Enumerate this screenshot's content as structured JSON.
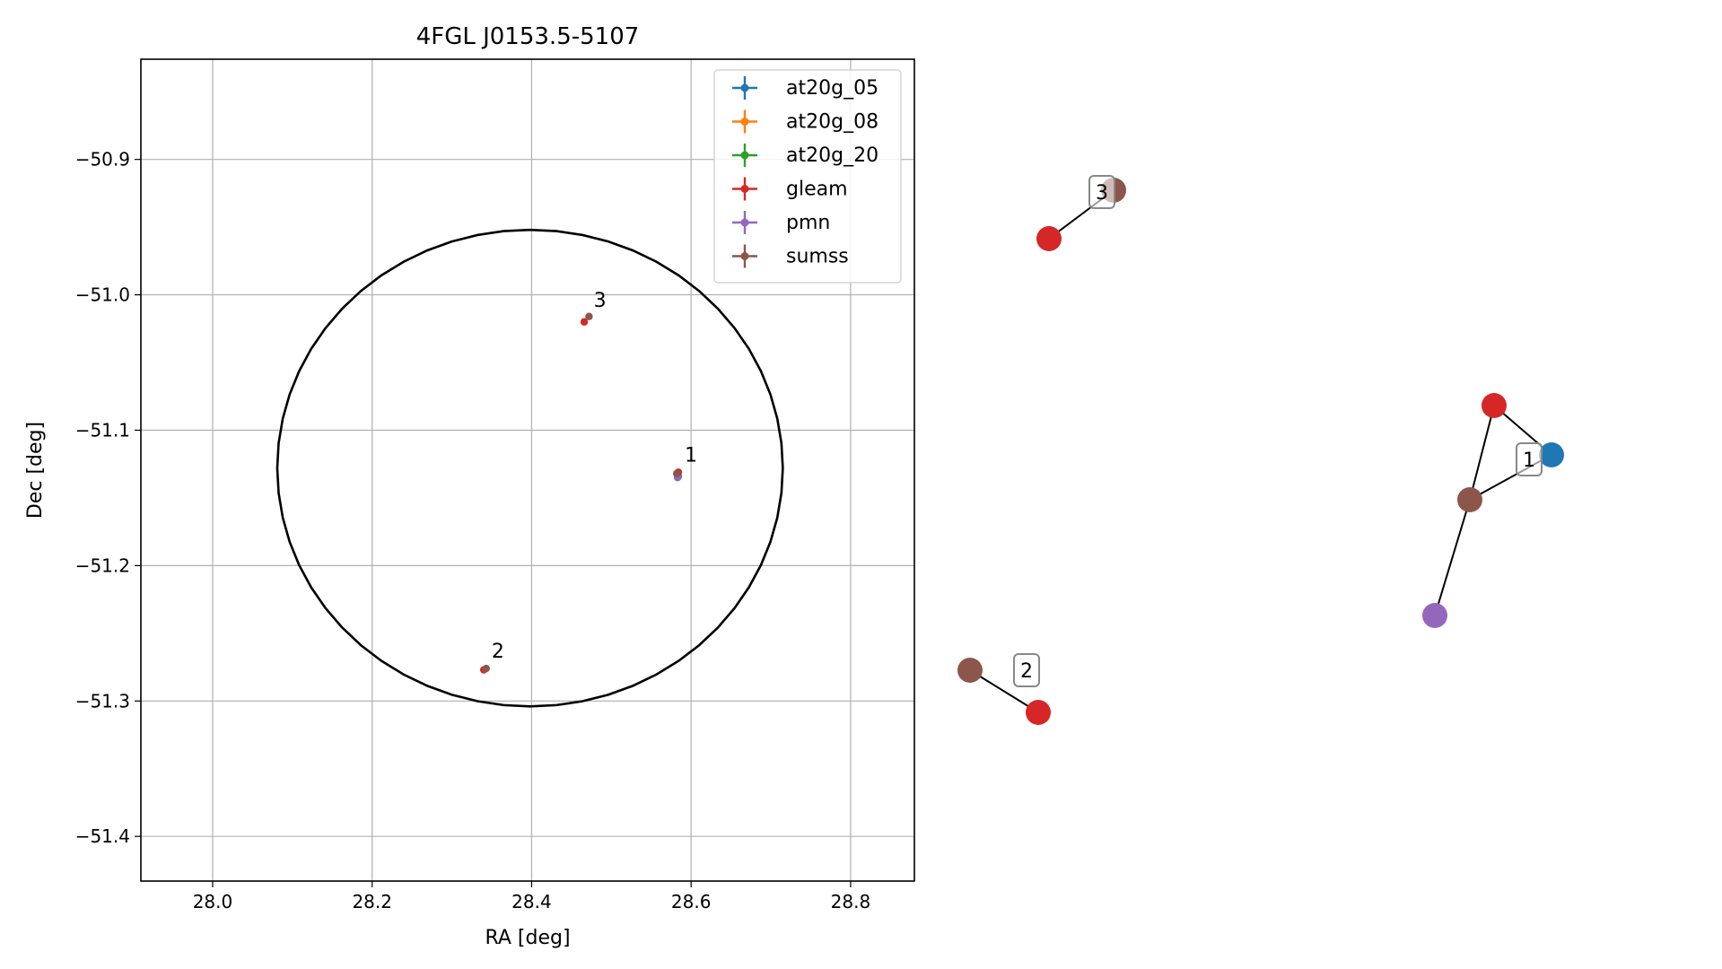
{
  "chart_data": [
    {
      "type": "scatter",
      "title": "4FGL J0153.5-5107",
      "xlabel": "RA [deg]",
      "ylabel": "Dec [deg]",
      "xlim": [
        27.91,
        28.88
      ],
      "ylim": [
        -51.433,
        -50.826
      ],
      "xticks": [
        "28.0",
        "28.2",
        "28.4",
        "28.6",
        "28.8"
      ],
      "xtick_values": [
        28.0,
        28.2,
        28.4,
        28.6,
        28.8
      ],
      "yticks": [
        "−50.9",
        "−51.0",
        "−51.1",
        "−51.2",
        "−51.3",
        "−51.4"
      ],
      "ytick_values": [
        -50.9,
        -51.0,
        -51.1,
        -51.2,
        -51.3,
        -51.4
      ],
      "grid": true,
      "legend_position": "top-right",
      "series": [
        {
          "name": "at20g_05",
          "color": "#1f77b4",
          "points": [
            [
              28.584,
              -51.134
            ]
          ]
        },
        {
          "name": "at20g_08",
          "color": "#ff7f0e",
          "points": [
            [
              28.584,
              -51.134
            ]
          ]
        },
        {
          "name": "at20g_20",
          "color": "#2ca02c",
          "points": [
            [
              28.584,
              -51.134
            ]
          ]
        },
        {
          "name": "gleam",
          "color": "#d62728",
          "points": [
            [
              28.466,
              -51.02
            ],
            [
              28.584,
              -51.131
            ],
            [
              28.34,
              -51.277
            ]
          ]
        },
        {
          "name": "pmn",
          "color": "#9467bd",
          "points": [
            [
              28.583,
              -51.135
            ]
          ]
        },
        {
          "name": "sumss",
          "color": "#8c564b",
          "points": [
            [
              28.472,
              -51.016
            ],
            [
              28.582,
              -51.132
            ],
            [
              28.343,
              -51.276
            ]
          ]
        }
      ],
      "ellipse": {
        "center": [
          28.398,
          -51.128
        ],
        "half_width_ra": 0.317,
        "half_height_dec": 0.176,
        "color": "#000000"
      },
      "annotations": [
        {
          "text": "1",
          "x": 28.584,
          "y": -51.131
        },
        {
          "text": "2",
          "x": 28.342,
          "y": -51.276
        },
        {
          "text": "3",
          "x": 28.47,
          "y": -51.017
        }
      ]
    },
    {
      "type": "network",
      "nodes": [
        {
          "id": "g3",
          "color": "#d62728"
        },
        {
          "id": "s3",
          "color": "#8c564b"
        },
        {
          "id": "g1",
          "color": "#d62728"
        },
        {
          "id": "a1",
          "color": "#1f77b4"
        },
        {
          "id": "s1",
          "color": "#8c564b"
        },
        {
          "id": "p1",
          "color": "#9467bd"
        },
        {
          "id": "s2",
          "color": "#8c564b"
        },
        {
          "id": "g2",
          "color": "#d62728"
        }
      ],
      "edges": [
        [
          "g3",
          "s3"
        ],
        [
          "g1",
          "a1"
        ],
        [
          "g1",
          "s1"
        ],
        [
          "s1",
          "a1"
        ],
        [
          "s1",
          "p1"
        ],
        [
          "s2",
          "g2"
        ]
      ],
      "labels": [
        {
          "text": "3",
          "node": "s3"
        },
        {
          "text": "1",
          "node": "a1"
        },
        {
          "text": "2",
          "node": "g2"
        }
      ]
    }
  ]
}
